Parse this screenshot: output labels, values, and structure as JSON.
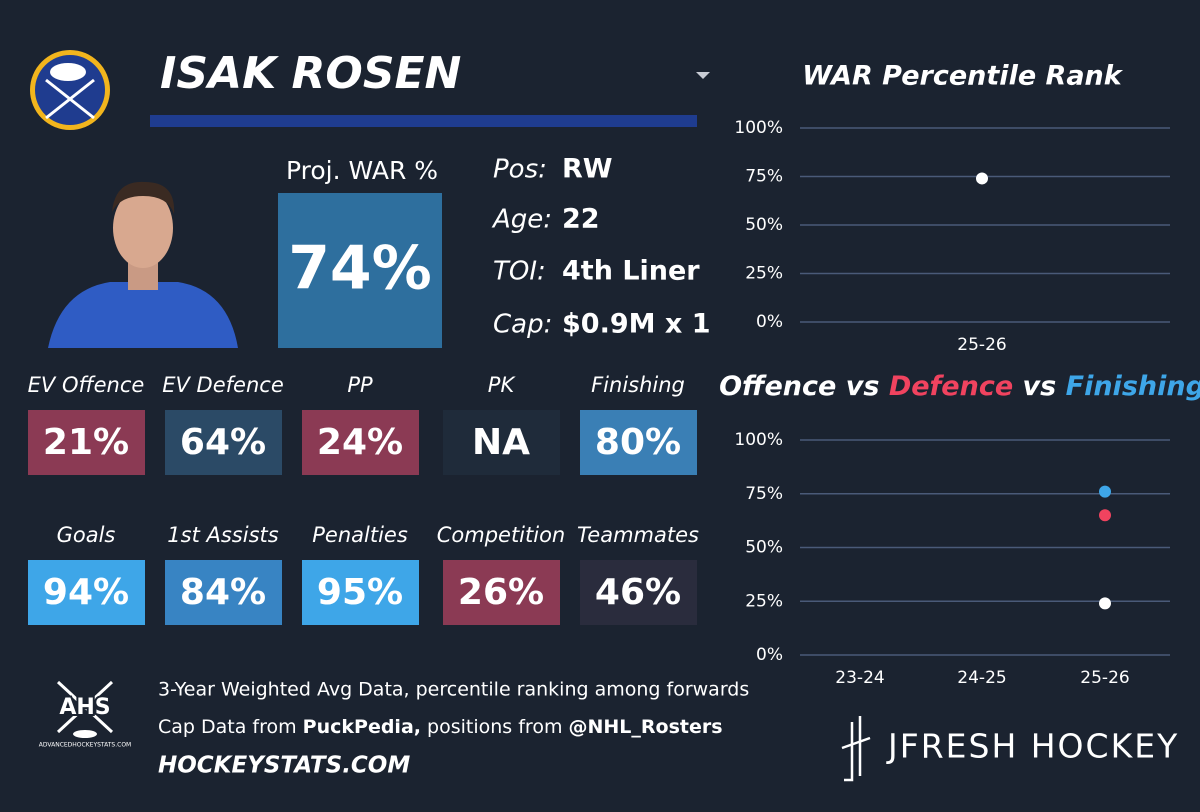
{
  "card": {
    "player_name": "ISAK ROSEN",
    "proj_war": {
      "label": "Proj. WAR %",
      "value": "74%",
      "color": "#2e6f9e"
    },
    "info": [
      {
        "label": "Pos:",
        "value": "RW"
      },
      {
        "label": "Age:",
        "value": "22"
      },
      {
        "label": "TOI:",
        "value": "4th Liner"
      },
      {
        "label": "Cap:",
        "value": "$0.9M x 1"
      }
    ],
    "tiles": [
      {
        "label": "EV Offence",
        "value": "21%",
        "color": "#8b3a54"
      },
      {
        "label": "EV Defence",
        "value": "64%",
        "color": "#2b4a66"
      },
      {
        "label": "PP",
        "value": "24%",
        "color": "#8b3a54"
      },
      {
        "label": "PK",
        "value": "NA",
        "color": "#1f2b3a"
      },
      {
        "label": "Finishing",
        "value": "80%",
        "color": "#3a7fb5"
      },
      {
        "label": "Goals",
        "value": "94%",
        "color": "#3ea6e8"
      },
      {
        "label": "1st Assists",
        "value": "84%",
        "color": "#3884c3"
      },
      {
        "label": "Penalties",
        "value": "95%",
        "color": "#3ea6e8"
      },
      {
        "label": "Competition",
        "value": "26%",
        "color": "#8b3a54"
      },
      {
        "label": "Teammates",
        "value": "46%",
        "color": "#2a2c3d"
      }
    ],
    "footer": {
      "line1": "3-Year Weighted Avg Data, percentile ranking among forwards",
      "line2": [
        "Cap Data from ",
        "PuckPedia,",
        " positions from ",
        "@NHL_Rosters"
      ],
      "site": "HOCKEYSTATS.COM",
      "ahs": "AHS",
      "ahs_site": "ADVANCEDHOCKEYSTATS.COM",
      "brand": "JFRESH HOCKEY"
    }
  },
  "chart_data": [
    {
      "type": "scatter",
      "title": "WAR Percentile Rank",
      "categories": [
        "25-26"
      ],
      "series": [
        {
          "color": "#ffffff",
          "values": [
            74
          ]
        }
      ],
      "ylim": [
        0,
        100
      ],
      "yticks": [
        {
          "value": 0,
          "label": "0%"
        },
        {
          "value": 25,
          "label": "25%"
        },
        {
          "value": 50,
          "label": "50%"
        },
        {
          "value": 75,
          "label": "75%"
        },
        {
          "value": 100,
          "label": "100%"
        }
      ],
      "grid": true
    },
    {
      "type": "scatter",
      "title_joiner": "vs",
      "categories": [
        "23-24",
        "24-25",
        "25-26"
      ],
      "series": [
        {
          "name": "Offence",
          "color": "#ffffff",
          "values": [
            null,
            null,
            24
          ]
        },
        {
          "name": "Defence",
          "color": "#f0435f",
          "values": [
            null,
            null,
            65
          ]
        },
        {
          "name": "Finishing",
          "color": "#3ea6e8",
          "values": [
            null,
            null,
            76
          ]
        }
      ],
      "ylim": [
        0,
        100
      ],
      "yticks": [
        {
          "value": 0,
          "label": "0%"
        },
        {
          "value": 25,
          "label": "25%"
        },
        {
          "value": 50,
          "label": "50%"
        },
        {
          "value": 75,
          "label": "75%"
        },
        {
          "value": 100,
          "label": "100%"
        }
      ],
      "grid": true
    }
  ]
}
